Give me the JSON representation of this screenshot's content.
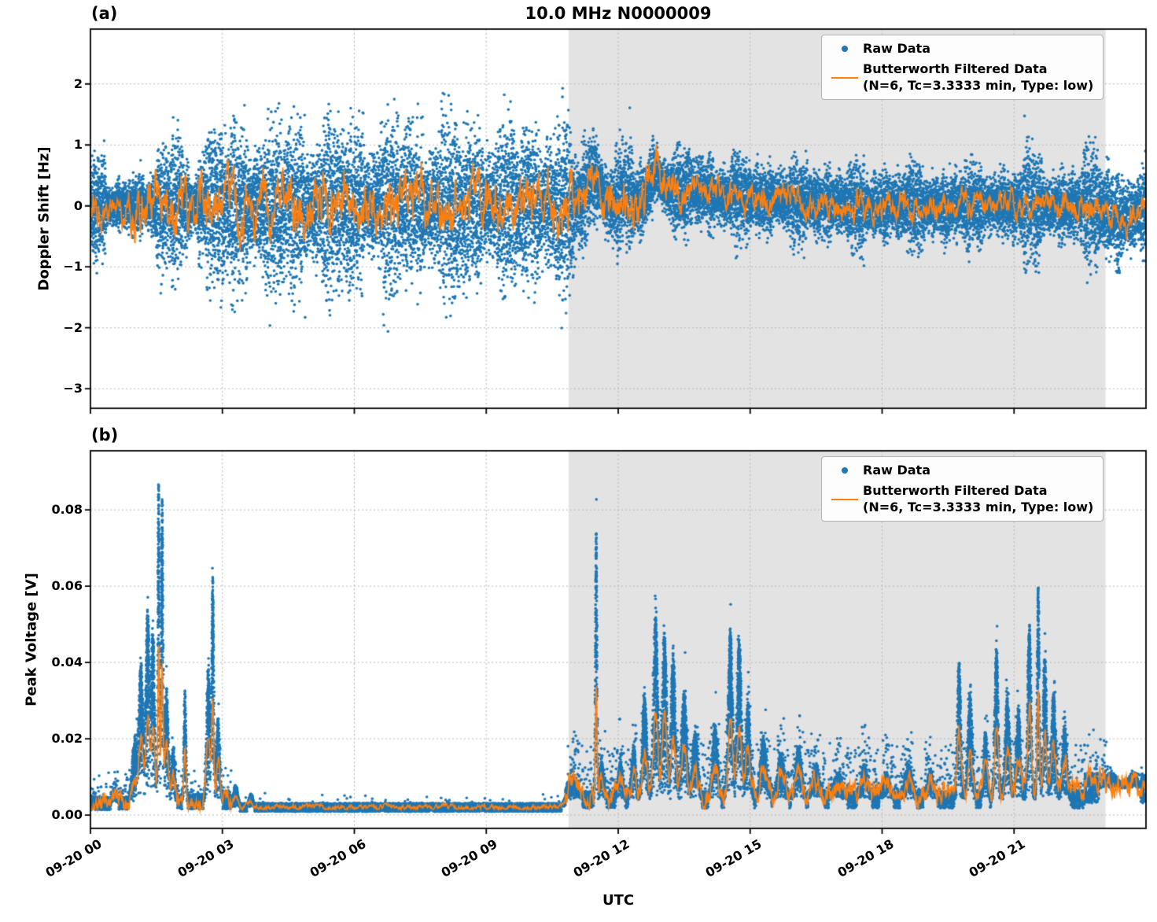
{
  "title": "10.0 MHz N0000009",
  "xlabel": "UTC",
  "legend": {
    "raw_label": "Raw Data",
    "filtered_label_line1": "Butterworth Filtered Data",
    "filtered_label_line2": "(N=6, Tc=3.3333 min, Type: low)"
  },
  "colors": {
    "raw": "#1f77b4",
    "filtered": "#ff7f0e",
    "shade": "#e3e3e3",
    "grid": "#b5b5b5",
    "frame": "#000000"
  },
  "chart_data": [
    {
      "type": "scatter",
      "panel_label": "(a)",
      "title": "10.0 MHz N0000009",
      "xlabel": "UTC",
      "ylabel": "Doppler Shift [Hz]",
      "x_range_hours": [
        0,
        24
      ],
      "x_tick_hours": [
        0,
        3,
        6,
        9,
        12,
        15,
        18,
        21
      ],
      "x_tick_labels": [
        "09-20 00",
        "09-20 03",
        "09-20 06",
        "09-20 09",
        "09-20 12",
        "09-20 15",
        "09-20 18",
        "09-20 21"
      ],
      "ylim": [
        -3.32,
        2.9
      ],
      "y_ticks": [
        2,
        1,
        0,
        -1,
        -2,
        -3
      ],
      "y_tick_labels": [
        "2",
        "1",
        "0",
        "−1",
        "−2",
        "−3"
      ],
      "shaded_hours": [
        10.87,
        23.08
      ],
      "grid": true,
      "legend_position": "upper right",
      "series": [
        {
          "name": "Raw Data",
          "kind": "scatter",
          "color": "#1f77b4",
          "band_halfwidth_segments": [
            [
              0,
              0.35,
              1.25
            ],
            [
              0.35,
              0.95,
              0.55
            ],
            [
              0.95,
              1.2,
              1.3
            ],
            [
              1.2,
              1.5,
              0.65
            ],
            [
              1.5,
              2.1,
              1.7
            ],
            [
              2.1,
              2.45,
              1.05
            ],
            [
              2.45,
              3.0,
              1.9
            ],
            [
              3.0,
              10.9,
              2.05
            ],
            [
              10.9,
              11.4,
              1.45
            ],
            [
              11.4,
              12.4,
              1.15
            ],
            [
              12.4,
              21.1,
              0.95
            ],
            [
              21.1,
              21.7,
              1.25
            ],
            [
              21.7,
              22.6,
              0.95
            ],
            [
              22.6,
              23.4,
              1.45
            ],
            [
              23.4,
              24.01,
              0.95
            ]
          ],
          "mean_bumps": [
            [
              11.45,
              0.15,
              0.5
            ],
            [
              12.15,
              0.1,
              0.25
            ],
            [
              12.85,
              0.15,
              0.45
            ],
            [
              13.6,
              0.5,
              0.2
            ],
            [
              15.0,
              1.0,
              0.12
            ],
            [
              23.5,
              0.3,
              -0.2
            ]
          ]
        },
        {
          "name": "Butterworth Filtered Data (N=6, Tc=3.3333 min, Type: low)",
          "kind": "line",
          "color": "#ff7f0e",
          "mean_bumps": [
            [
              11.45,
              0.15,
              0.5
            ],
            [
              12.15,
              0.1,
              0.25
            ],
            [
              12.85,
              0.15,
              0.45
            ],
            [
              13.6,
              0.5,
              0.2
            ],
            [
              15.0,
              1.0,
              0.12
            ],
            [
              23.5,
              0.3,
              -0.2
            ]
          ],
          "wiggle_segments": [
            [
              0,
              0.9,
              0.35
            ],
            [
              0.9,
              11,
              0.55
            ],
            [
              11,
              13.5,
              0.45
            ],
            [
              13.5,
              24.01,
              0.28
            ]
          ]
        }
      ]
    },
    {
      "type": "scatter",
      "panel_label": "(b)",
      "xlabel": "UTC",
      "ylabel": "Peak Voltage [V]",
      "x_range_hours": [
        0,
        24
      ],
      "x_tick_hours": [
        0,
        3,
        6,
        9,
        12,
        15,
        18,
        21
      ],
      "x_tick_labels": [
        "09-20 00",
        "09-20 03",
        "09-20 06",
        "09-20 09",
        "09-20 12",
        "09-20 15",
        "09-20 18",
        "09-20 21"
      ],
      "ylim": [
        -0.0035,
        0.0955
      ],
      "y_ticks": [
        0.0,
        0.02,
        0.04,
        0.06,
        0.08
      ],
      "y_tick_labels": [
        "0.00",
        "0.02",
        "0.04",
        "0.06",
        "0.08"
      ],
      "shaded_hours": [
        10.87,
        23.08
      ],
      "grid": true,
      "legend_position": "upper right",
      "series": [
        {
          "name": "Raw Data",
          "kind": "scatter",
          "color": "#1f77b4",
          "baseline_segments": [
            [
              0,
              0.9,
              0.003
            ],
            [
              0.9,
              3.2,
              0.0035
            ],
            [
              3.2,
              10.8,
              0.002
            ],
            [
              10.8,
              22.6,
              0.004
            ],
            [
              22.6,
              24.01,
              0.007
            ]
          ],
          "peak_events": [
            [
              0.55,
              0.05,
              0.004
            ],
            [
              1.0,
              0.06,
              0.015
            ],
            [
              1.15,
              0.05,
              0.035
            ],
            [
              1.3,
              0.04,
              0.05
            ],
            [
              1.42,
              0.04,
              0.045
            ],
            [
              1.55,
              0.018,
              0.085
            ],
            [
              1.63,
              0.022,
              0.078
            ],
            [
              1.73,
              0.04,
              0.03
            ],
            [
              1.88,
              0.04,
              0.014
            ],
            [
              2.15,
              0.025,
              0.03
            ],
            [
              2.68,
              0.04,
              0.035
            ],
            [
              2.78,
              0.025,
              0.058
            ],
            [
              2.9,
              0.04,
              0.022
            ],
            [
              3.3,
              0.05,
              0.006
            ],
            [
              3.65,
              0.05,
              0.0035
            ],
            [
              10.95,
              0.12,
              0.006
            ],
            [
              11.5,
              0.02,
              0.07
            ],
            [
              11.62,
              0.05,
              0.01
            ],
            [
              12.05,
              0.05,
              0.01
            ],
            [
              12.35,
              0.05,
              0.014
            ],
            [
              12.6,
              0.05,
              0.028
            ],
            [
              12.85,
              0.05,
              0.048
            ],
            [
              13.05,
              0.05,
              0.044
            ],
            [
              13.25,
              0.05,
              0.038
            ],
            [
              13.5,
              0.06,
              0.028
            ],
            [
              13.75,
              0.06,
              0.018
            ],
            [
              14.2,
              0.06,
              0.02
            ],
            [
              14.55,
              0.05,
              0.044
            ],
            [
              14.75,
              0.05,
              0.042
            ],
            [
              14.95,
              0.05,
              0.026
            ],
            [
              15.3,
              0.07,
              0.016
            ],
            [
              15.7,
              0.08,
              0.012
            ],
            [
              16.1,
              0.07,
              0.014
            ],
            [
              16.5,
              0.08,
              0.009
            ],
            [
              17.0,
              0.1,
              0.007
            ],
            [
              17.6,
              0.08,
              0.009
            ],
            [
              18.1,
              0.08,
              0.007
            ],
            [
              18.6,
              0.09,
              0.009
            ],
            [
              19.1,
              0.08,
              0.007
            ],
            [
              19.75,
              0.04,
              0.036
            ],
            [
              20.0,
              0.05,
              0.028
            ],
            [
              20.35,
              0.04,
              0.018
            ],
            [
              20.6,
              0.04,
              0.04
            ],
            [
              20.85,
              0.05,
              0.028
            ],
            [
              21.1,
              0.05,
              0.024
            ],
            [
              21.35,
              0.04,
              0.046
            ],
            [
              21.55,
              0.025,
              0.056
            ],
            [
              21.7,
              0.04,
              0.038
            ],
            [
              21.9,
              0.05,
              0.028
            ],
            [
              22.15,
              0.05,
              0.02
            ],
            [
              23.2,
              0.15,
              0.004
            ],
            [
              23.7,
              0.1,
              0.004
            ]
          ]
        },
        {
          "name": "Butterworth Filtered Data (N=6, Tc=3.3333 min, Type: low)",
          "kind": "line",
          "color": "#ff7f0e",
          "peak_followthrough": 0.45,
          "wiggle_segments": [
            [
              0,
              3.2,
              0.003
            ],
            [
              3.2,
              10.8,
              0.0008
            ],
            [
              10.8,
              24.01,
              0.0035
            ]
          ]
        }
      ]
    }
  ]
}
